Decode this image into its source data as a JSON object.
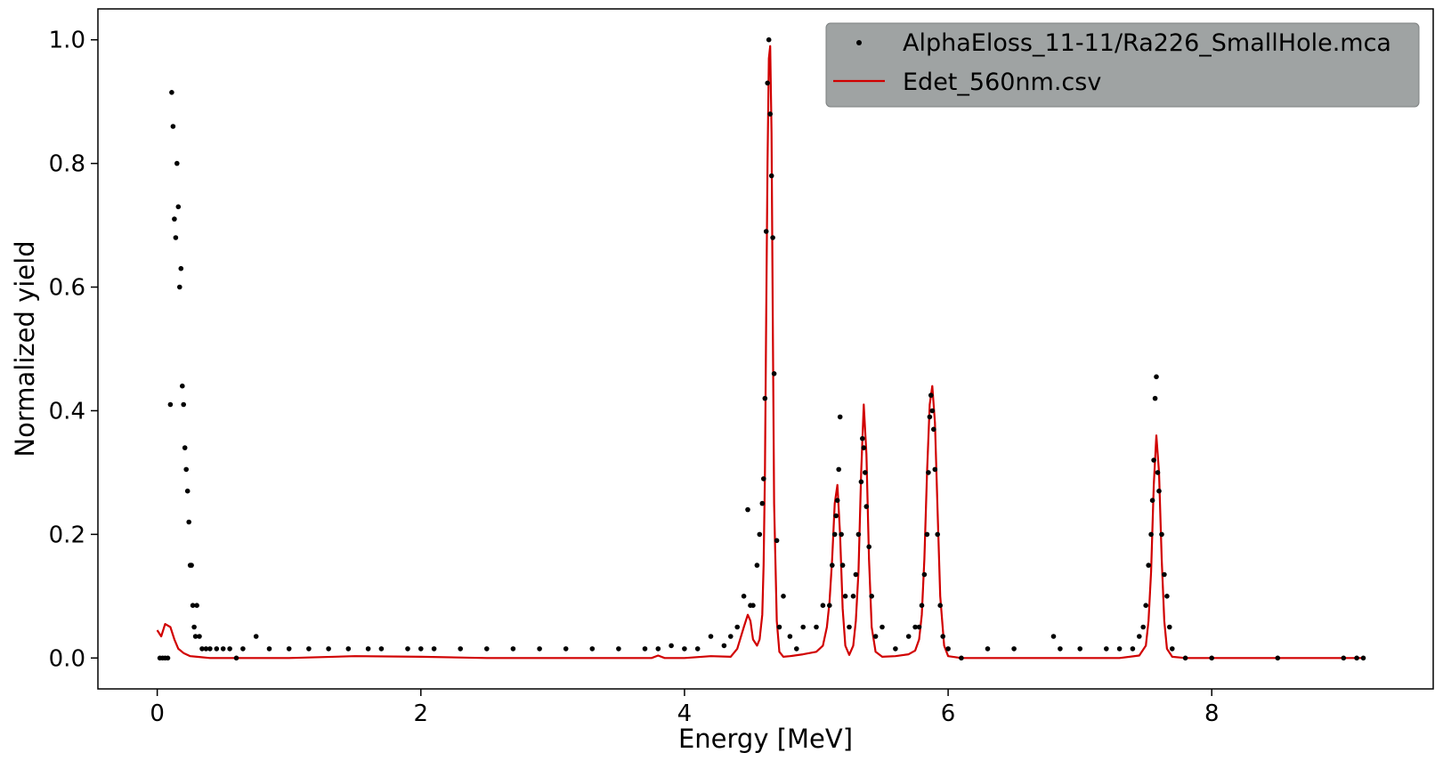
{
  "chart_data": {
    "type": "scatter",
    "title": "",
    "xlabel": "Energy [MeV]",
    "ylabel": "Normalized yield",
    "xlim": [
      -0.45,
      9.68
    ],
    "ylim": [
      -0.05,
      1.05
    ],
    "x_ticks": [
      0,
      2,
      4,
      6,
      8
    ],
    "y_ticks": [
      0.0,
      0.2,
      0.4,
      0.6,
      0.8,
      1.0
    ],
    "x_tick_labels": [
      "0",
      "2",
      "4",
      "6",
      "8"
    ],
    "y_tick_labels": [
      "0.0",
      "0.2",
      "0.4",
      "0.6",
      "0.8",
      "1.0"
    ],
    "grid": false,
    "legend_position": "top-right",
    "legend_background": "#9fa3a3",
    "series": [
      {
        "name": "AlphaEloss_11-11/Ra226_SmallHole.mca",
        "kind": "scatter",
        "color": "#000000",
        "x": [
          0.02,
          0.04,
          0.06,
          0.08,
          0.1,
          0.11,
          0.12,
          0.13,
          0.14,
          0.15,
          0.16,
          0.17,
          0.18,
          0.19,
          0.2,
          0.21,
          0.22,
          0.23,
          0.24,
          0.25,
          0.26,
          0.27,
          0.28,
          0.29,
          0.3,
          0.32,
          0.34,
          0.37,
          0.4,
          0.45,
          0.5,
          0.55,
          0.6,
          0.65,
          0.75,
          0.85,
          1.0,
          1.15,
          1.3,
          1.45,
          1.6,
          1.7,
          1.9,
          2.0,
          2.1,
          2.3,
          2.5,
          2.7,
          2.9,
          3.1,
          3.3,
          3.5,
          3.7,
          3.8,
          3.9,
          4.0,
          4.1,
          4.2,
          4.3,
          4.35,
          4.4,
          4.45,
          4.48,
          4.5,
          4.52,
          4.55,
          4.57,
          4.59,
          4.6,
          4.61,
          4.62,
          4.63,
          4.64,
          4.65,
          4.66,
          4.67,
          4.68,
          4.7,
          4.72,
          4.75,
          4.8,
          4.85,
          4.9,
          5.0,
          5.05,
          5.1,
          5.12,
          5.14,
          5.15,
          5.16,
          5.17,
          5.18,
          5.19,
          5.2,
          5.22,
          5.25,
          5.28,
          5.3,
          5.32,
          5.34,
          5.35,
          5.36,
          5.37,
          5.38,
          5.4,
          5.42,
          5.45,
          5.5,
          5.6,
          5.7,
          5.75,
          5.78,
          5.8,
          5.82,
          5.84,
          5.85,
          5.86,
          5.87,
          5.88,
          5.89,
          5.9,
          5.92,
          5.94,
          5.96,
          6.0,
          6.1,
          6.3,
          6.5,
          6.8,
          6.85,
          7.0,
          7.2,
          7.3,
          7.4,
          7.45,
          7.48,
          7.5,
          7.52,
          7.54,
          7.55,
          7.56,
          7.57,
          7.58,
          7.59,
          7.6,
          7.62,
          7.64,
          7.66,
          7.68,
          7.7,
          7.8,
          8.0,
          8.5,
          9.0,
          9.1,
          9.15
        ],
        "y": [
          0.0,
          0.0,
          0.0,
          0.0,
          0.41,
          0.915,
          0.86,
          0.71,
          0.68,
          0.8,
          0.73,
          0.6,
          0.63,
          0.44,
          0.41,
          0.34,
          0.305,
          0.27,
          0.22,
          0.15,
          0.15,
          0.085,
          0.05,
          0.035,
          0.085,
          0.035,
          0.015,
          0.015,
          0.015,
          0.015,
          0.015,
          0.015,
          0.0,
          0.015,
          0.035,
          0.015,
          0.015,
          0.015,
          0.015,
          0.015,
          0.015,
          0.015,
          0.015,
          0.015,
          0.015,
          0.015,
          0.015,
          0.015,
          0.015,
          0.015,
          0.015,
          0.015,
          0.015,
          0.015,
          0.02,
          0.015,
          0.015,
          0.035,
          0.02,
          0.035,
          0.05,
          0.1,
          0.24,
          0.085,
          0.085,
          0.15,
          0.2,
          0.25,
          0.29,
          0.42,
          0.69,
          0.93,
          1.0,
          0.88,
          0.78,
          0.68,
          0.46,
          0.19,
          0.05,
          0.1,
          0.035,
          0.015,
          0.05,
          0.05,
          0.085,
          0.085,
          0.15,
          0.2,
          0.23,
          0.255,
          0.305,
          0.39,
          0.2,
          0.15,
          0.1,
          0.05,
          0.1,
          0.135,
          0.2,
          0.285,
          0.355,
          0.34,
          0.3,
          0.245,
          0.18,
          0.1,
          0.035,
          0.05,
          0.015,
          0.035,
          0.05,
          0.05,
          0.085,
          0.135,
          0.2,
          0.3,
          0.39,
          0.425,
          0.4,
          0.37,
          0.305,
          0.2,
          0.085,
          0.035,
          0.015,
          0.0,
          0.015,
          0.015,
          0.035,
          0.015,
          0.015,
          0.015,
          0.015,
          0.015,
          0.035,
          0.05,
          0.085,
          0.15,
          0.2,
          0.255,
          0.32,
          0.42,
          0.455,
          0.3,
          0.27,
          0.2,
          0.135,
          0.1,
          0.05,
          0.015,
          0.0,
          0.0,
          0.0,
          0.0,
          0.0,
          0.0
        ]
      },
      {
        "name": "Edet_560nm.csv",
        "kind": "line",
        "color": "#d10000",
        "x": [
          0.0,
          0.03,
          0.06,
          0.1,
          0.13,
          0.16,
          0.2,
          0.25,
          0.3,
          0.4,
          0.5,
          1.0,
          1.5,
          2.0,
          2.5,
          3.0,
          3.5,
          3.75,
          3.8,
          3.85,
          4.0,
          4.2,
          4.35,
          4.4,
          4.45,
          4.48,
          4.5,
          4.52,
          4.55,
          4.57,
          4.59,
          4.6,
          4.61,
          4.62,
          4.63,
          4.64,
          4.65,
          4.66,
          4.67,
          4.68,
          4.7,
          4.72,
          4.75,
          4.8,
          4.9,
          5.0,
          5.05,
          5.08,
          5.1,
          5.12,
          5.14,
          5.16,
          5.18,
          5.2,
          5.22,
          5.25,
          5.28,
          5.3,
          5.32,
          5.34,
          5.36,
          5.38,
          5.4,
          5.42,
          5.45,
          5.5,
          5.6,
          5.7,
          5.75,
          5.78,
          5.8,
          5.82,
          5.84,
          5.86,
          5.88,
          5.9,
          5.92,
          5.94,
          5.97,
          6.0,
          6.1,
          6.5,
          7.0,
          7.3,
          7.45,
          7.5,
          7.52,
          7.54,
          7.56,
          7.58,
          7.6,
          7.62,
          7.64,
          7.66,
          7.7,
          7.8,
          8.5,
          9.1,
          9.15
        ],
        "y": [
          0.045,
          0.035,
          0.055,
          0.05,
          0.03,
          0.015,
          0.008,
          0.003,
          0.002,
          0.0,
          0.0,
          0.0,
          0.003,
          0.002,
          0.0,
          0.0,
          0.0,
          0.0,
          0.004,
          0.0,
          0.0,
          0.003,
          0.002,
          0.015,
          0.05,
          0.07,
          0.06,
          0.03,
          0.02,
          0.03,
          0.07,
          0.15,
          0.3,
          0.55,
          0.8,
          0.97,
          0.99,
          0.85,
          0.55,
          0.25,
          0.06,
          0.01,
          0.002,
          0.003,
          0.006,
          0.01,
          0.02,
          0.05,
          0.09,
          0.16,
          0.25,
          0.28,
          0.2,
          0.08,
          0.02,
          0.005,
          0.02,
          0.06,
          0.14,
          0.3,
          0.41,
          0.33,
          0.16,
          0.05,
          0.01,
          0.002,
          0.003,
          0.006,
          0.012,
          0.03,
          0.07,
          0.16,
          0.3,
          0.41,
          0.44,
          0.38,
          0.24,
          0.1,
          0.02,
          0.003,
          0.0,
          0.0,
          0.0,
          0.0,
          0.004,
          0.02,
          0.06,
          0.14,
          0.28,
          0.36,
          0.3,
          0.16,
          0.06,
          0.015,
          0.002,
          0.0,
          0.0,
          0.0,
          0.0
        ]
      }
    ]
  }
}
